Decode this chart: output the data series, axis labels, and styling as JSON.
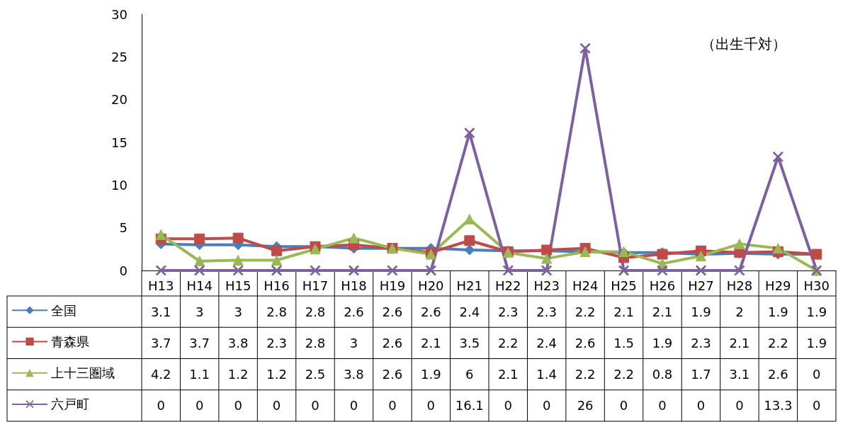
{
  "chart_data": {
    "type": "line",
    "categories": [
      "H13",
      "H14",
      "H15",
      "H16",
      "H17",
      "H18",
      "H19",
      "H20",
      "H21",
      "H22",
      "H23",
      "H24",
      "H25",
      "H26",
      "H27",
      "H28",
      "H29",
      "H30"
    ],
    "series": [
      {
        "name": "全国",
        "color": "#4a7ebb",
        "marker": "diamond",
        "values": [
          3.1,
          3,
          3,
          2.8,
          2.8,
          2.6,
          2.6,
          2.6,
          2.4,
          2.3,
          2.3,
          2.2,
          2.1,
          2.1,
          1.9,
          2,
          1.9,
          1.9
        ]
      },
      {
        "name": "青森県",
        "color": "#be4b48",
        "marker": "square",
        "values": [
          3.7,
          3.7,
          3.8,
          2.3,
          2.8,
          3,
          2.6,
          2.1,
          3.5,
          2.2,
          2.4,
          2.6,
          1.5,
          1.9,
          2.3,
          2.1,
          2.2,
          1.9
        ]
      },
      {
        "name": "上十三圏域",
        "color": "#98b954",
        "marker": "triangle",
        "values": [
          4.2,
          1.1,
          1.2,
          1.2,
          2.5,
          3.8,
          2.6,
          1.9,
          6,
          2.1,
          1.4,
          2.2,
          2.2,
          0.8,
          1.7,
          3.1,
          2.6,
          0
        ]
      },
      {
        "name": "六戸町",
        "color": "#7d60a0",
        "marker": "cross",
        "values": [
          0,
          0,
          0,
          0,
          0,
          0,
          0,
          0,
          16.1,
          0,
          0,
          26,
          0,
          0,
          0,
          0,
          13.3,
          0
        ]
      }
    ],
    "ylim": [
      0,
      30
    ],
    "yticks": [
      0,
      5,
      10,
      15,
      20,
      25,
      30
    ],
    "annotations": [
      "（出生千対）"
    ],
    "data_labels": true,
    "legend": "bottom left"
  }
}
